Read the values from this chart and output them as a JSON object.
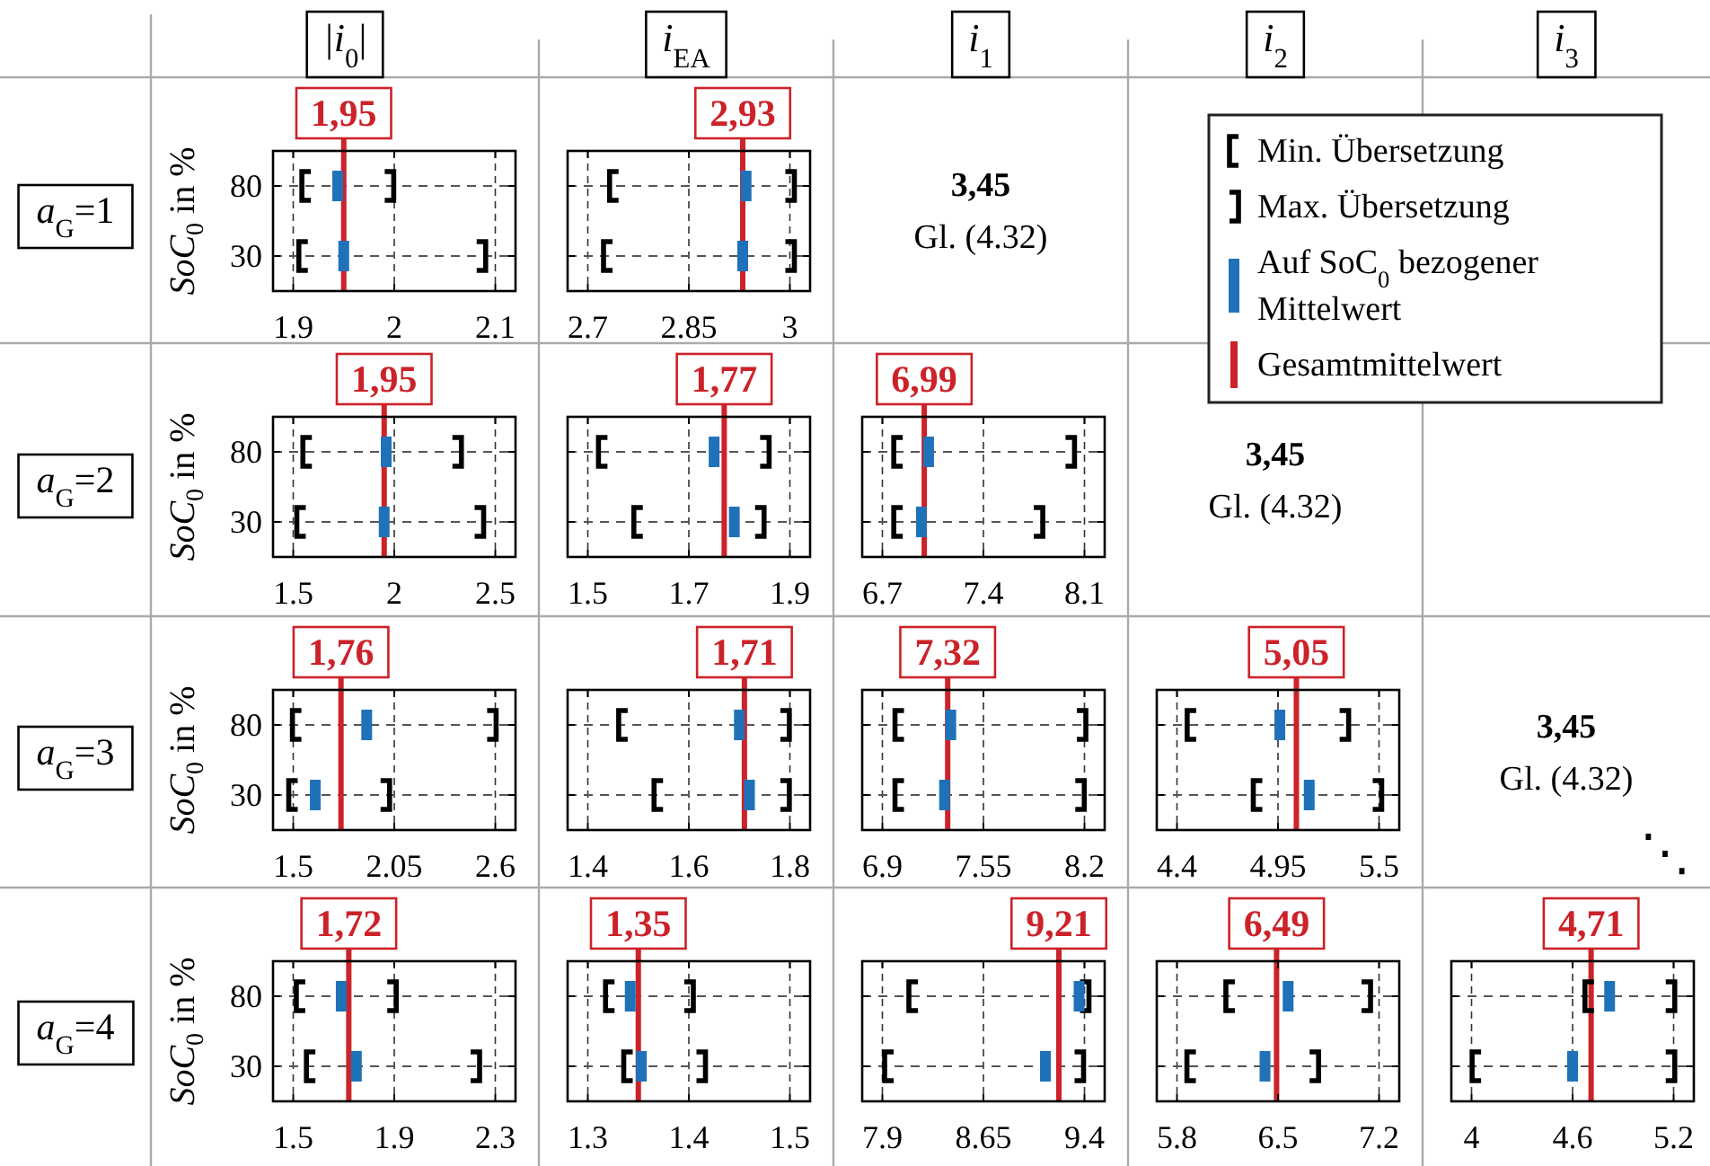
{
  "chart_data": [
    {
      "type": "other",
      "title": "|i$_{0}$|"
    },
    {
      "type": "other",
      "title": "i$_{EA}$"
    },
    {
      "type": "other",
      "title": "i$_{1}$"
    },
    {
      "type": "other",
      "title": "i$_{2}$"
    },
    {
      "type": "other",
      "title": "i$_{3}$"
    },
    {
      "type": "other",
      "title": "a$_{G}$=1"
    },
    {
      "type": "scatter",
      "orientation": "horizontal",
      "categories": [
        "80",
        "30"
      ],
      "ylabel": "SoC$_{0}$ in %",
      "xlim": [
        1.88,
        2.12
      ],
      "xticks": [
        1.9,
        2,
        2.1
      ],
      "grid": true,
      "series": [
        {
          "color": "#000000",
          "values": [
            1.913,
            1.91
          ]
        },
        {
          "color": "#000000",
          "values": [
            1.995,
            2.086
          ]
        },
        {
          "color": "#1f72b8",
          "values": [
            1.944,
            1.95
          ]
        }
      ],
      "ref_lines": [
        {
          "axis": "x",
          "value": 1.95,
          "label": "1,95",
          "color": "#cc2229"
        }
      ]
    },
    {
      "type": "scatter",
      "orientation": "horizontal",
      "categories": [
        "80",
        "30"
      ],
      "tick_labels": "x",
      "xlim": [
        2.67,
        3.03
      ],
      "xticks": [
        2.7,
        2.85,
        3
      ],
      "grid": true,
      "series": [
        {
          "color": "#000000",
          "values": [
            2.739,
            2.73
          ]
        },
        {
          "color": "#000000",
          "values": [
            3,
            3
          ]
        },
        {
          "color": "#1f72b8",
          "values": [
            2.935,
            2.93
          ]
        }
      ],
      "ref_lines": [
        {
          "axis": "x",
          "value": 2.93,
          "label": "2,93",
          "color": "#cc2229"
        }
      ]
    },
    {
      "type": "other",
      "title": "3,45",
      "subtitle": "Gl. (4.32)"
    },
    {
      "type": "other",
      "annotations": [
        "Min. Übersetzung",
        "Max. Übersetzung",
        "Auf SoC$_{0}$ bezogener Mittelwert",
        "Gesamtmittelwert"
      ]
    },
    {
      "type": "other",
      "title": "a$_{G}$=2"
    },
    {
      "type": "scatter",
      "orientation": "horizontal",
      "categories": [
        "80",
        "30"
      ],
      "ylabel": "SoC$_{0}$ in %",
      "xlim": [
        1.4,
        2.6
      ],
      "xticks": [
        1.5,
        2,
        2.5
      ],
      "grid": true,
      "series": [
        {
          "color": "#000000",
          "values": [
            1.57,
            1.54
          ]
        },
        {
          "color": "#000000",
          "values": [
            2.31,
            2.42
          ]
        },
        {
          "color": "#1f72b8",
          "values": [
            1.96,
            1.95
          ]
        }
      ],
      "ref_lines": [
        {
          "axis": "x",
          "value": 1.95,
          "label": "1,95",
          "color": "#cc2229"
        }
      ]
    },
    {
      "type": "scatter",
      "orientation": "horizontal",
      "categories": [
        "80",
        "30"
      ],
      "tick_labels": "x",
      "xlim": [
        1.46,
        1.94
      ],
      "xticks": [
        1.5,
        1.7,
        1.9
      ],
      "grid": true,
      "series": [
        {
          "color": "#000000",
          "values": [
            1.53,
            1.6
          ]
        },
        {
          "color": "#000000",
          "values": [
            1.85,
            1.84
          ]
        },
        {
          "color": "#1f72b8",
          "values": [
            1.75,
            1.79
          ]
        }
      ],
      "ref_lines": [
        {
          "axis": "x",
          "value": 1.77,
          "label": "1,77",
          "color": "#cc2229"
        }
      ]
    },
    {
      "type": "scatter",
      "orientation": "horizontal",
      "categories": [
        "80",
        "30"
      ],
      "tick_labels": "x",
      "xlim": [
        6.56,
        8.24
      ],
      "xticks": [
        6.7,
        7.4,
        8.1
      ],
      "grid": true,
      "series": [
        {
          "color": "#000000",
          "values": [
            6.81,
            6.81
          ]
        },
        {
          "color": "#000000",
          "values": [
            8,
            7.78
          ]
        },
        {
          "color": "#1f72b8",
          "values": [
            7.02,
            6.97
          ]
        }
      ],
      "ref_lines": [
        {
          "axis": "x",
          "value": 6.99,
          "label": "6,99",
          "color": "#cc2229"
        }
      ]
    },
    {
      "type": "other",
      "title": "3,45",
      "subtitle": "Gl. (4.32)"
    },
    {
      "type": "other",
      "title": "a$_{G}$=3"
    },
    {
      "type": "scatter",
      "orientation": "horizontal",
      "categories": [
        "80",
        "30"
      ],
      "ylabel": "SoC$_{0}$ in %",
      "xlim": [
        1.39,
        2.71
      ],
      "xticks": [
        1.5,
        2.05,
        2.6
      ],
      "grid": true,
      "series": [
        {
          "color": "#000000",
          "values": [
            1.52,
            1.5
          ]
        },
        {
          "color": "#000000",
          "values": [
            2.58,
            2
          ]
        },
        {
          "color": "#1f72b8",
          "values": [
            1.9,
            1.62
          ]
        }
      ],
      "ref_lines": [
        {
          "axis": "x",
          "value": 1.76,
          "label": "1,76",
          "color": "#cc2229"
        }
      ]
    },
    {
      "type": "scatter",
      "orientation": "horizontal",
      "categories": [
        "80",
        "30"
      ],
      "tick_labels": "x",
      "xlim": [
        1.36,
        1.84
      ],
      "xticks": [
        1.4,
        1.6,
        1.8
      ],
      "grid": true,
      "series": [
        {
          "color": "#000000",
          "values": [
            1.47,
            1.54
          ]
        },
        {
          "color": "#000000",
          "values": [
            1.79,
            1.79
          ]
        },
        {
          "color": "#1f72b8",
          "values": [
            1.7,
            1.72
          ]
        }
      ],
      "ref_lines": [
        {
          "axis": "x",
          "value": 1.71,
          "label": "1,71",
          "color": "#cc2229"
        }
      ]
    },
    {
      "type": "scatter",
      "orientation": "horizontal",
      "categories": [
        "80",
        "30"
      ],
      "tick_labels": "x",
      "xlim": [
        6.77,
        8.33
      ],
      "xticks": [
        6.9,
        7.55,
        8.2
      ],
      "grid": true,
      "series": [
        {
          "color": "#000000",
          "values": [
            7.01,
            7.01
          ]
        },
        {
          "color": "#000000",
          "values": [
            8.18,
            8.17
          ]
        },
        {
          "color": "#1f72b8",
          "values": [
            7.34,
            7.3
          ]
        }
      ],
      "ref_lines": [
        {
          "axis": "x",
          "value": 7.32,
          "label": "7,32",
          "color": "#cc2229"
        }
      ]
    },
    {
      "type": "scatter",
      "orientation": "horizontal",
      "categories": [
        "80",
        "30"
      ],
      "tick_labels": "x",
      "xlim": [
        4.29,
        5.61
      ],
      "xticks": [
        4.4,
        4.95,
        5.5
      ],
      "grid": true,
      "series": [
        {
          "color": "#000000",
          "values": [
            4.48,
            4.84
          ]
        },
        {
          "color": "#000000",
          "values": [
            5.31,
            5.49
          ]
        },
        {
          "color": "#1f72b8",
          "values": [
            4.96,
            5.12
          ]
        }
      ],
      "ref_lines": [
        {
          "axis": "x",
          "value": 5.05,
          "label": "5,05",
          "color": "#cc2229"
        }
      ]
    },
    {
      "type": "other",
      "title": "3,45",
      "subtitle": "Gl. (4.32)",
      "annotations": [
        "⋱"
      ]
    },
    {
      "type": "other",
      "title": "a$_{G}$=4"
    },
    {
      "type": "scatter",
      "orientation": "horizontal",
      "categories": [
        "80",
        "30"
      ],
      "ylabel": "SoC$_{0}$ in %",
      "xlim": [
        1.42,
        2.38
      ],
      "xticks": [
        1.5,
        1.9,
        2.3
      ],
      "grid": true,
      "series": [
        {
          "color": "#000000",
          "values": [
            1.53,
            1.57
          ]
        },
        {
          "color": "#000000",
          "values": [
            1.89,
            2.22
          ]
        },
        {
          "color": "#1f72b8",
          "values": [
            1.69,
            1.75
          ]
        }
      ],
      "ref_lines": [
        {
          "axis": "x",
          "value": 1.72,
          "label": "1,72",
          "color": "#cc2229"
        }
      ]
    },
    {
      "type": "scatter",
      "orientation": "horizontal",
      "categories": [
        "80",
        "30"
      ],
      "tick_labels": "x",
      "xlim": [
        1.28,
        1.52
      ],
      "xticks": [
        1.3,
        1.4,
        1.5
      ],
      "grid": true,
      "series": [
        {
          "color": "#000000",
          "values": [
            1.322,
            1.34
          ]
        },
        {
          "color": "#000000",
          "values": [
            1.4,
            1.412
          ]
        },
        {
          "color": "#1f72b8",
          "values": [
            1.342,
            1.353
          ]
        }
      ],
      "ref_lines": [
        {
          "axis": "x",
          "value": 1.35,
          "label": "1,35",
          "color": "#cc2229"
        }
      ]
    },
    {
      "type": "scatter",
      "orientation": "horizontal",
      "categories": [
        "80",
        "30"
      ],
      "tick_labels": "x",
      "xlim": [
        7.75,
        9.55
      ],
      "xticks": [
        7.9,
        8.65,
        9.4
      ],
      "grid": true,
      "series": [
        {
          "color": "#000000",
          "values": [
            8.13,
            7.95
          ]
        },
        {
          "color": "#000000",
          "values": [
            9.4,
            9.36
          ]
        },
        {
          "color": "#1f72b8",
          "values": [
            9.36,
            9.11
          ]
        }
      ],
      "ref_lines": [
        {
          "axis": "x",
          "value": 9.21,
          "label": "9,21",
          "color": "#cc2229"
        }
      ]
    },
    {
      "type": "scatter",
      "orientation": "horizontal",
      "categories": [
        "80",
        "30"
      ],
      "tick_labels": "x",
      "xlim": [
        5.66,
        7.34
      ],
      "xticks": [
        5.8,
        6.5,
        7.2
      ],
      "grid": true,
      "series": [
        {
          "color": "#000000",
          "values": [
            6.17,
            5.9
          ]
        },
        {
          "color": "#000000",
          "values": [
            7.11,
            6.75
          ]
        },
        {
          "color": "#1f72b8",
          "values": [
            6.57,
            6.41
          ]
        }
      ],
      "ref_lines": [
        {
          "axis": "x",
          "value": 6.49,
          "label": "6,49",
          "color": "#cc2229"
        }
      ]
    },
    {
      "type": "scatter",
      "orientation": "horizontal",
      "categories": [
        "80",
        "30"
      ],
      "tick_labels": "x",
      "xlim": [
        3.88,
        5.32
      ],
      "xticks": [
        4,
        4.6,
        5.2
      ],
      "grid": true,
      "series": [
        {
          "color": "#000000",
          "values": [
            4.7,
            4.03
          ]
        },
        {
          "color": "#000000",
          "values": [
            5.18,
            5.18
          ]
        },
        {
          "color": "#1f72b8",
          "values": [
            4.82,
            4.6
          ]
        }
      ],
      "ref_lines": [
        {
          "axis": "x",
          "value": 4.71,
          "label": "4,71",
          "color": "#cc2229"
        }
      ]
    }
  ]
}
